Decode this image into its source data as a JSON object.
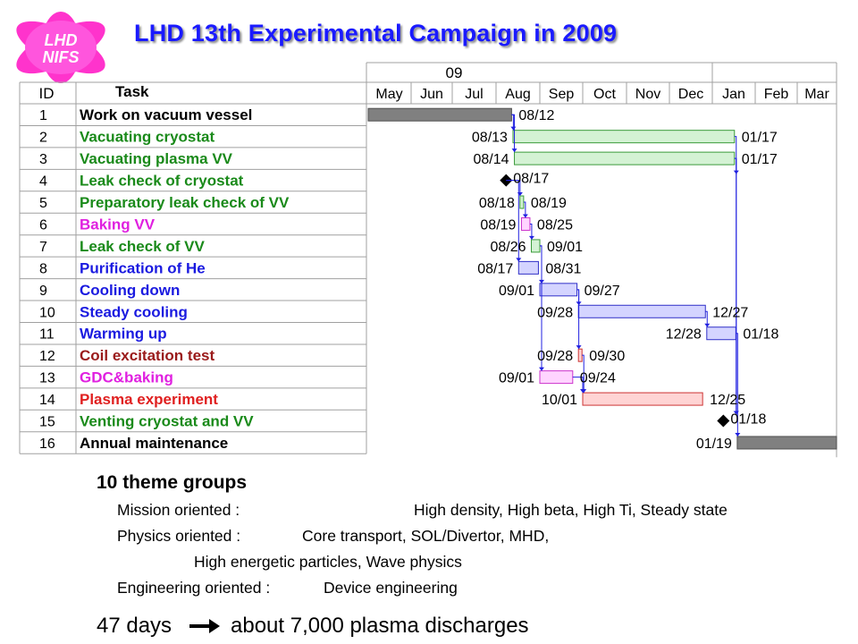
{
  "title": "LHD 13th Experimental Campaign in 2009",
  "logo": {
    "line1": "LHD",
    "line2": "NIFS"
  },
  "colors": {
    "title": "#1a1aff",
    "gray_bar": "#808080",
    "green_bar": "#d4f2d4",
    "green_edge": "#3a9a3a",
    "blue_bar": "#d4d4ff",
    "blue_edge": "#3030c8",
    "pink_bar": "#ffd4ff",
    "pink_edge": "#cc33cc",
    "red_bar": "#ffd4d4",
    "red_edge": "#cc3333",
    "link": "#2020e0"
  },
  "chart_data": {
    "type": "gantt",
    "header": {
      "id": "ID",
      "task": "Task",
      "year_top": "09"
    },
    "months": [
      "May",
      "Jun",
      "Jul",
      "Aug",
      "Sep",
      "Oct",
      "Nov",
      "Dec",
      "Jan",
      "Feb",
      "Mar"
    ],
    "tasks": [
      {
        "id": "1",
        "name": "Work on vacuum vessel",
        "color": "#000000",
        "bar": "gray",
        "start": "",
        "end": "08/12",
        "start_day": -10,
        "end_day": 103
      },
      {
        "id": "2",
        "name": "Vacuating cryostat",
        "color": "#1a8a1a",
        "bar": "green",
        "start": "08/13",
        "end": "01/17",
        "start_day": 104,
        "end_day": 261
      },
      {
        "id": "3",
        "name": "Vacuating plasma VV",
        "color": "#1a8a1a",
        "bar": "green",
        "start": "08/14",
        "end": "01/17",
        "start_day": 105,
        "end_day": 261
      },
      {
        "id": "4",
        "name": "Leak check of cryostat",
        "color": "#1a8a1a",
        "bar": "milestone",
        "start": "",
        "end": "08/17",
        "start_day": 108,
        "end_day": 108
      },
      {
        "id": "5",
        "name": "Preparatory leak check of VV",
        "color": "#1a8a1a",
        "bar": "green",
        "start": "08/18",
        "end": "08/19",
        "start_day": 109,
        "end_day": 110
      },
      {
        "id": "6",
        "name": "Baking VV",
        "color": "#e020e0",
        "bar": "pink",
        "start": "08/19",
        "end": "08/25",
        "start_day": 110,
        "end_day": 116
      },
      {
        "id": "7",
        "name": "Leak check of VV",
        "color": "#1a8a1a",
        "bar": "green",
        "start": "08/26",
        "end": "09/01",
        "start_day": 117,
        "end_day": 123
      },
      {
        "id": "8",
        "name": "Purification of He",
        "color": "#1a1ae0",
        "bar": "blue",
        "start": "08/17",
        "end": "08/31",
        "start_day": 108,
        "end_day": 122
      },
      {
        "id": "9",
        "name": "Cooling down",
        "color": "#1a1ae0",
        "bar": "blue",
        "start": "09/01",
        "end": "09/27",
        "start_day": 123,
        "end_day": 149
      },
      {
        "id": "10",
        "name": "Steady cooling",
        "color": "#1a1ae0",
        "bar": "blue",
        "start": "09/28",
        "end": "12/27",
        "start_day": 150,
        "end_day": 240
      },
      {
        "id": "11",
        "name": "Warming up",
        "color": "#1a1ae0",
        "bar": "blue",
        "start": "12/28",
        "end": "01/18",
        "start_day": 241,
        "end_day": 262
      },
      {
        "id": "12",
        "name": "Coil excitation test",
        "color": "#9a1a1a",
        "bar": "red",
        "start": "09/28",
        "end": "09/30",
        "start_day": 150,
        "end_day": 152
      },
      {
        "id": "13",
        "name": "GDC&baking",
        "color": "#e020e0",
        "bar": "pink",
        "start": "09/01",
        "end": "09/24",
        "start_day": 123,
        "end_day": 146
      },
      {
        "id": "14",
        "name": "Plasma experiment",
        "color": "#e02020",
        "bar": "red",
        "start": "10/01",
        "end": "12/25",
        "start_day": 153,
        "end_day": 238
      },
      {
        "id": "15",
        "name": "Venting cryostat and VV",
        "color": "#1a8a1a",
        "bar": "milestone",
        "start": "",
        "end": "01/18",
        "start_day": 262,
        "end_day": 262
      },
      {
        "id": "16",
        "name": "Annual maintenance",
        "color": "#000000",
        "bar": "gray",
        "start": "01/19",
        "end": "",
        "start_day": 263,
        "end_day": 340
      }
    ]
  },
  "summary": {
    "heading": "10 theme groups",
    "mission_label": "Mission oriented :",
    "mission_value": "High density, High beta, High Ti, Steady state",
    "physics_label": "Physics oriented :",
    "physics_value1": "Core transport, SOL/Divertor, MHD,",
    "physics_value2": "High energetic particles, Wave physics",
    "eng_label": "Engineering oriented :",
    "eng_value": "Device engineering",
    "bottom_left": "47 days",
    "bottom_right": "about 7,000 plasma discharges"
  }
}
